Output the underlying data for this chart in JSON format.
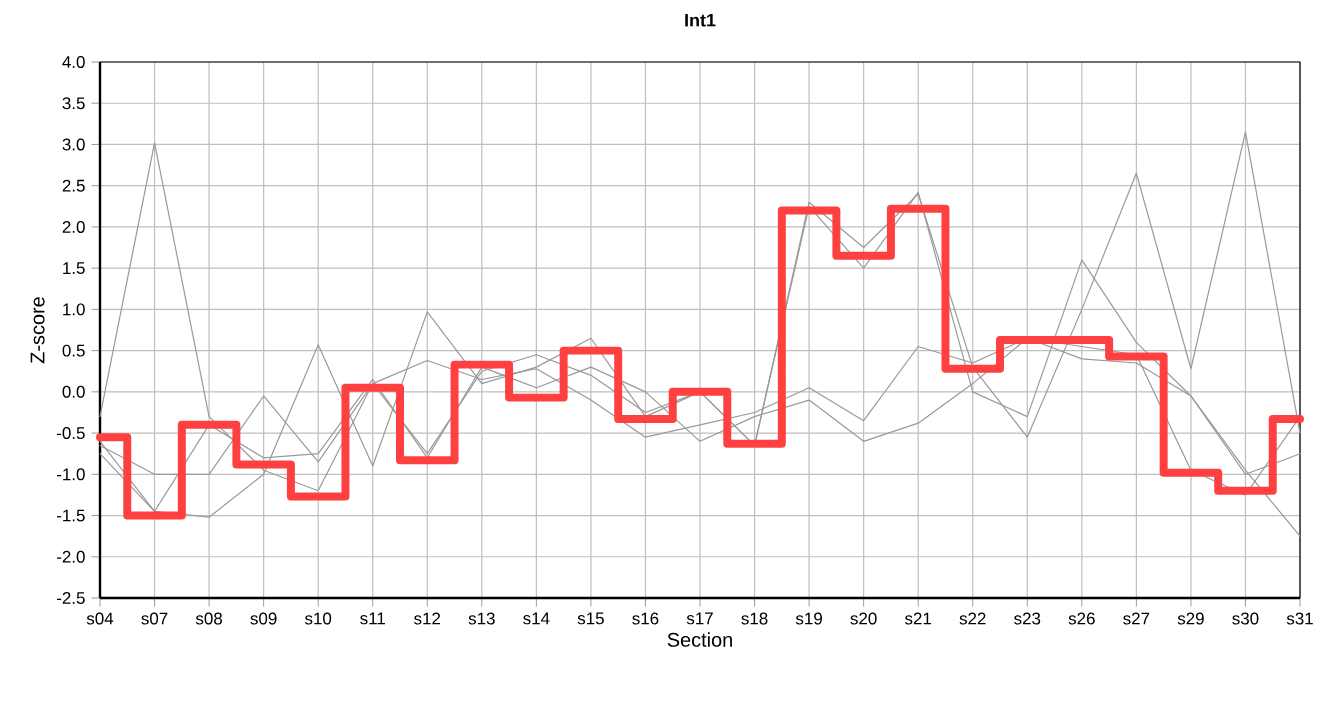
{
  "chart_data": {
    "type": "line",
    "title": "Int1",
    "xlabel": "Section",
    "ylabel": "Z-score",
    "categories": [
      "s04",
      "s07",
      "s08",
      "s09",
      "s10",
      "s11",
      "s12",
      "s13",
      "s14",
      "s15",
      "s16",
      "s17",
      "s18",
      "s19",
      "s20",
      "s21",
      "s22",
      "s23",
      "s26",
      "s27",
      "s29",
      "s30",
      "s31"
    ],
    "series": [
      {
        "color": "#999999",
        "values": [
          -0.3,
          3.02,
          -0.3,
          -0.95,
          -1.2,
          0.1,
          -0.75,
          0.25,
          0.45,
          0.2,
          -0.25,
          0.0,
          -0.65,
          2.25,
          1.5,
          2.42,
          0.0,
          -0.3,
          1.6,
          0.6,
          -0.05,
          -0.95,
          -1.75
        ]
      },
      {
        "color": "#999999",
        "values": [
          -0.6,
          -1.45,
          -1.52,
          -1.0,
          0.57,
          -0.9,
          0.97,
          0.1,
          0.3,
          0.65,
          -0.3,
          0.0,
          -0.65,
          2.3,
          1.75,
          2.4,
          0.3,
          -0.55,
          1.0,
          2.65,
          0.28,
          3.15,
          -0.5
        ]
      },
      {
        "color": "#999999",
        "values": [
          -0.65,
          -1.0,
          -1.0,
          -0.05,
          -0.85,
          0.1,
          0.38,
          0.15,
          0.28,
          -0.1,
          -0.55,
          -0.4,
          -0.25,
          0.05,
          -0.35,
          0.55,
          0.35,
          0.65,
          0.4,
          0.35,
          -0.05,
          -1.0,
          -0.75
        ]
      },
      {
        "color": "#999999",
        "values": [
          -0.75,
          -1.45,
          -0.4,
          -0.8,
          -0.75,
          0.15,
          -0.8,
          0.3,
          0.05,
          0.3,
          0.0,
          -0.6,
          -0.3,
          -0.1,
          -0.6,
          -0.38,
          0.1,
          0.65,
          0.55,
          0.45,
          -0.95,
          -1.25,
          -0.3
        ]
      },
      {
        "type": "step",
        "color": "#ff4040",
        "values": [
          -0.55,
          -1.5,
          -0.4,
          -0.88,
          -1.27,
          0.05,
          -0.83,
          0.33,
          -0.07,
          0.5,
          -0.33,
          0.0,
          -0.63,
          2.2,
          1.65,
          2.22,
          0.28,
          0.63,
          0.63,
          0.43,
          -0.98,
          -1.2,
          -0.33
        ]
      }
    ],
    "ylim": [
      -2.5,
      4.0
    ],
    "yticks": [
      {
        "value": -2.5,
        "label": "-2.5"
      },
      {
        "value": -2,
        "label": "-2.0"
      },
      -1.5,
      {
        "value": -1,
        "label": "-1.0"
      },
      -0.5,
      {
        "value": 0,
        "label": "0.0"
      },
      0.5,
      {
        "value": 1,
        "label": "1.0"
      },
      1.5,
      {
        "value": 2,
        "label": "2.0"
      },
      2.5,
      {
        "value": 3,
        "label": "3.0"
      },
      3.5,
      {
        "value": 4,
        "label": "4.0"
      }
    ],
    "grid": true,
    "marker": "none",
    "line_style": "solid"
  }
}
